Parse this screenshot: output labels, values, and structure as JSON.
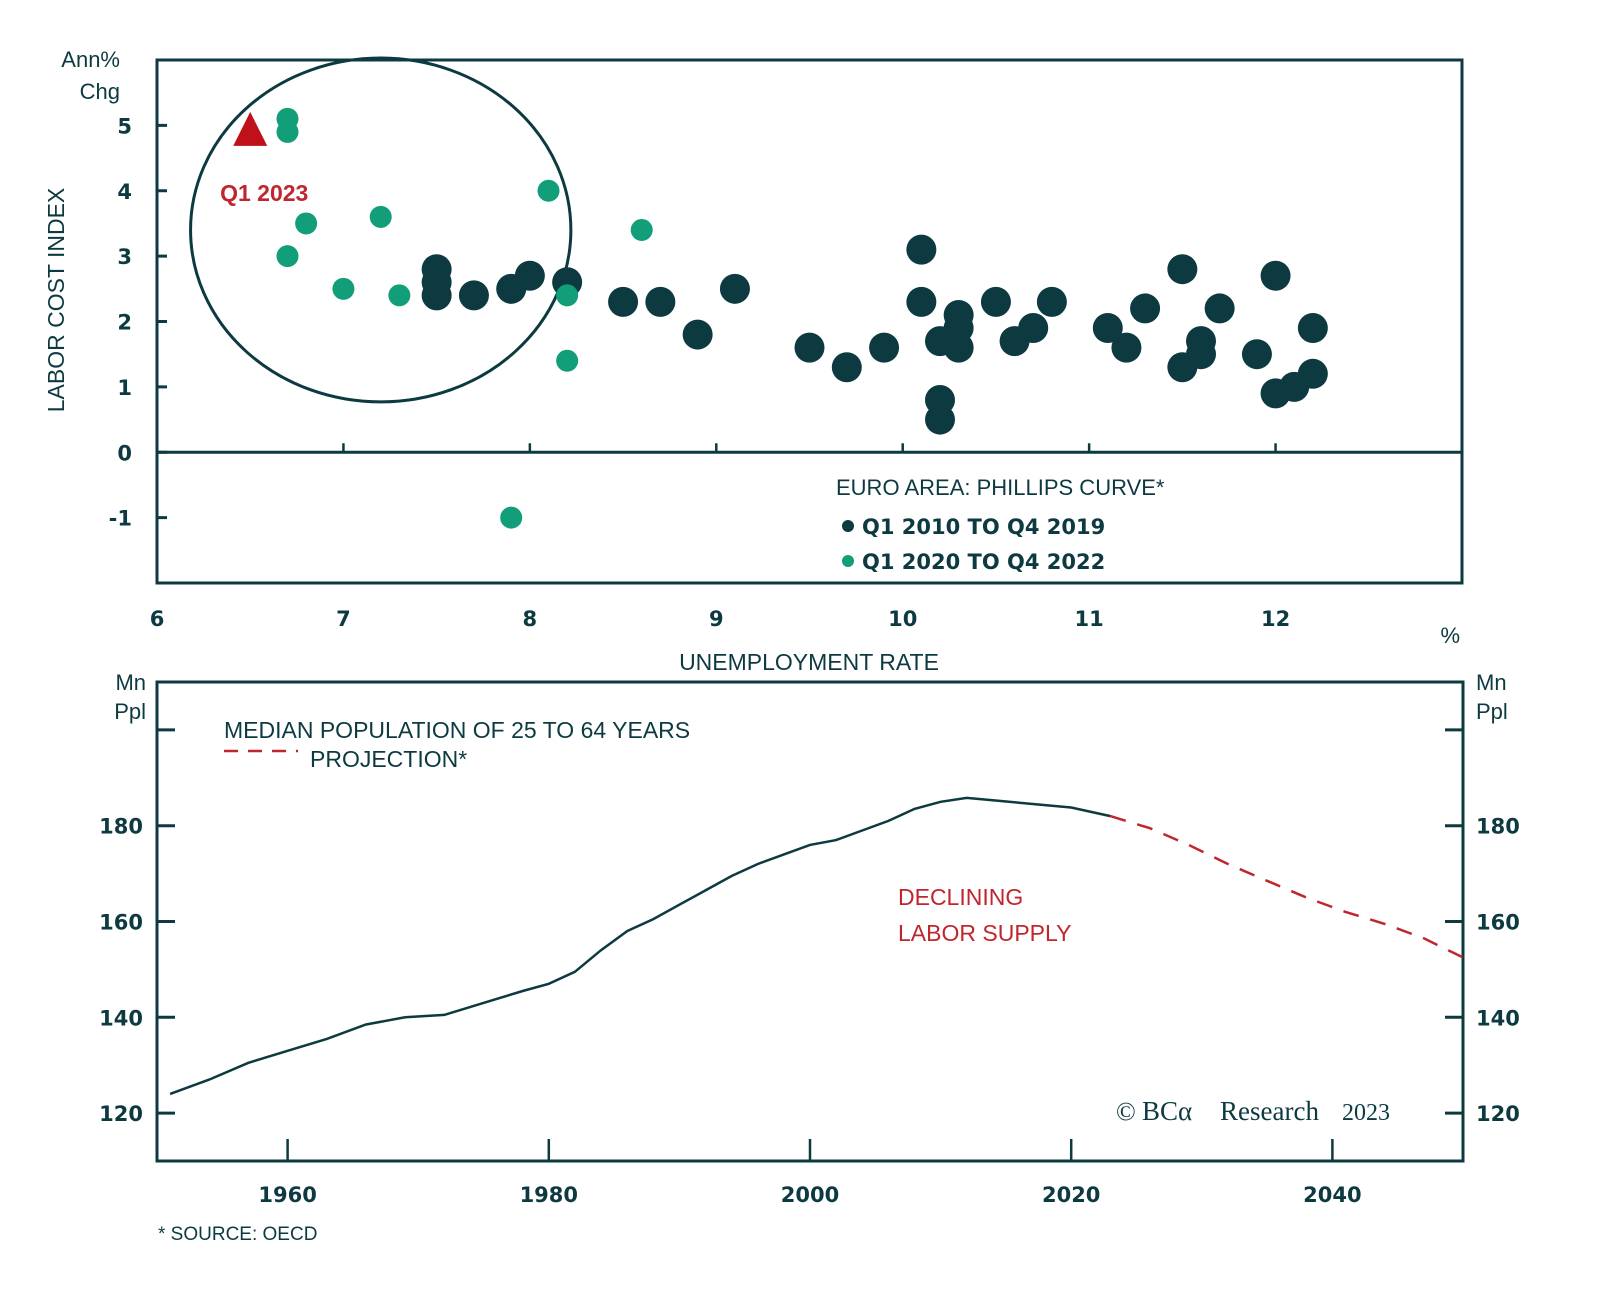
{
  "colors": {
    "dark": "#0d3a40",
    "teal": "#119e78",
    "red": "#c0101a",
    "red_text": "#c0262d"
  },
  "footnote": "* SOURCE: OECD",
  "watermark": {
    "symbol": "©",
    "brand": "BCα",
    "text": "Research",
    "year": "2023"
  },
  "chart_data": [
    {
      "type": "scatter",
      "title": "EURO AREA: PHILLIPS CURVE*",
      "xlabel": "UNEMPLOYMENT RATE",
      "x_unit": "%",
      "ylabel": "LABOR COST INDEX",
      "y_unit_line1": "Ann%",
      "y_unit_line2": "Chg",
      "xlim": [
        6,
        13
      ],
      "ylim": [
        -2,
        6
      ],
      "x_ticks": [
        6,
        7,
        8,
        9,
        10,
        11,
        12
      ],
      "y_ticks": [
        -1,
        0,
        1,
        2,
        3,
        4,
        5
      ],
      "grid": false,
      "legend_position": "bottom-right",
      "series": [
        {
          "name": "Q1 2010 TO Q4 2019",
          "color": "#0d3a40",
          "points": [
            [
              7.5,
              2.8
            ],
            [
              7.5,
              2.6
            ],
            [
              7.5,
              2.4
            ],
            [
              7.7,
              2.4
            ],
            [
              7.9,
              2.5
            ],
            [
              8.0,
              2.7
            ],
            [
              8.2,
              2.6
            ],
            [
              8.5,
              2.3
            ],
            [
              8.7,
              2.3
            ],
            [
              8.9,
              1.8
            ],
            [
              9.1,
              2.5
            ],
            [
              9.5,
              1.6
            ],
            [
              9.7,
              1.3
            ],
            [
              9.9,
              1.6
            ],
            [
              10.1,
              3.1
            ],
            [
              10.1,
              2.3
            ],
            [
              10.2,
              1.7
            ],
            [
              10.3,
              2.1
            ],
            [
              10.3,
              1.9
            ],
            [
              10.3,
              1.6
            ],
            [
              10.2,
              0.8
            ],
            [
              10.2,
              0.5
            ],
            [
              10.5,
              2.3
            ],
            [
              10.6,
              1.7
            ],
            [
              10.7,
              1.9
            ],
            [
              10.8,
              2.3
            ],
            [
              11.1,
              1.9
            ],
            [
              11.2,
              1.6
            ],
            [
              11.3,
              2.2
            ],
            [
              11.5,
              2.8
            ],
            [
              11.5,
              1.3
            ],
            [
              11.6,
              1.7
            ],
            [
              11.6,
              1.5
            ],
            [
              11.7,
              2.2
            ],
            [
              11.9,
              1.5
            ],
            [
              12.0,
              2.7
            ],
            [
              12.0,
              0.9
            ],
            [
              12.1,
              1.0
            ],
            [
              12.2,
              1.2
            ],
            [
              12.2,
              1.9
            ]
          ]
        },
        {
          "name": "Q1 2020 TO Q4 2022",
          "color": "#119e78",
          "points": [
            [
              6.7,
              5.1
            ],
            [
              6.7,
              4.9
            ],
            [
              6.8,
              3.5
            ],
            [
              6.7,
              3.0
            ],
            [
              7.0,
              2.5
            ],
            [
              7.2,
              3.6
            ],
            [
              7.3,
              2.4
            ],
            [
              8.1,
              4.0
            ],
            [
              8.2,
              2.4
            ],
            [
              8.2,
              1.4
            ],
            [
              8.6,
              3.4
            ],
            [
              7.9,
              -1.0
            ]
          ]
        }
      ],
      "highlight": {
        "label": "Q1 2023",
        "marker": "triangle",
        "x": 6.5,
        "y": 4.9,
        "color": "#c0101a"
      },
      "annotation_circle": {
        "cx": 7.2,
        "cy": 3.4,
        "rx": 1.02,
        "ry": 2.63
      }
    },
    {
      "type": "line",
      "title": "MEDIAN POPULATION OF 25 TO 64 YEARS",
      "ylabel_left_line1": "Mn",
      "ylabel_left_line2": "Ppl",
      "ylabel_right_line1": "Mn",
      "ylabel_right_line2": "Ppl",
      "xlim": [
        1950,
        2050
      ],
      "ylim": [
        110,
        210
      ],
      "x_ticks": [
        1960,
        1980,
        2000,
        2020,
        2040
      ],
      "y_ticks": [
        120,
        140,
        160,
        180,
        200
      ],
      "y_tick_labels": [
        "120",
        "140",
        "160",
        "180",
        ""
      ],
      "grid": false,
      "legend_position": "top-left",
      "annotation": {
        "line1": "DECLINING",
        "line2": "LABOR SUPPLY"
      },
      "series": [
        {
          "name": "MEDIAN POPULATION OF 25 TO 64 YEARS",
          "style": "solid",
          "color": "#0d3a40",
          "x": [
            1951,
            1954,
            1957,
            1960,
            1963,
            1966,
            1969,
            1972,
            1975,
            1978,
            1980,
            1982,
            1984,
            1986,
            1988,
            1990,
            1992,
            1994,
            1996,
            1998,
            2000,
            2002,
            2004,
            2006,
            2008,
            2010,
            2012,
            2014,
            2016,
            2018,
            2020,
            2023
          ],
          "y": [
            124,
            127,
            130.5,
            133,
            135.5,
            138.5,
            140,
            140.5,
            143,
            145.5,
            147,
            149.5,
            154,
            158,
            160.5,
            163.5,
            166.5,
            169.5,
            172,
            174,
            176,
            177,
            179,
            181,
            183.5,
            185,
            185.8,
            185.3,
            184.8,
            184.3,
            183.8,
            182
          ]
        },
        {
          "name": "PROJECTION*",
          "style": "dashed",
          "color": "#c0262d",
          "x": [
            2023,
            2026,
            2029,
            2032,
            2035,
            2038,
            2041,
            2044,
            2047,
            2050
          ],
          "y": [
            182,
            179.5,
            176,
            172,
            168.5,
            165,
            162,
            159.5,
            156.5,
            152.5
          ]
        }
      ]
    }
  ]
}
